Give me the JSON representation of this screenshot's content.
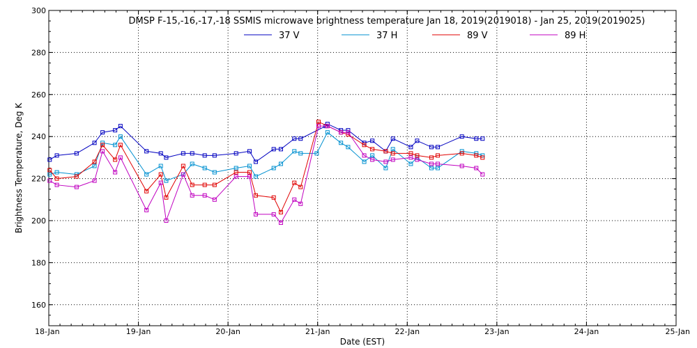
{
  "chart_data": {
    "type": "line",
    "title": "DMSP F-15,-16,-17,-18 SSMIS microwave brightness temperature Jan 18, 2019(2019018) - Jan 25, 2019(2019025)",
    "xlabel": "Date (EST)",
    "ylabel": "Brightness Temperature, Deg K",
    "x_ticks": [
      "18-Jan",
      "19-Jan",
      "20-Jan",
      "21-Jan",
      "22-Jan",
      "23-Jan",
      "24-Jan",
      "25-Jan"
    ],
    "xlim": [
      0,
      7
    ],
    "ylim": [
      150,
      300
    ],
    "y_ticks": [
      160,
      180,
      200,
      220,
      240,
      260,
      280,
      300
    ],
    "grid": true,
    "legend_position": "top-center",
    "series": [
      {
        "name": "37 V",
        "color": "#0000c0",
        "points": [
          [
            0.01,
            229
          ],
          [
            0.09,
            231
          ],
          [
            0.31,
            232
          ],
          [
            0.51,
            237
          ],
          [
            0.6,
            242
          ],
          [
            0.74,
            243
          ],
          [
            0.8,
            245
          ],
          [
            1.09,
            233
          ],
          [
            1.25,
            232
          ],
          [
            1.31,
            230
          ],
          [
            1.5,
            232
          ],
          [
            1.6,
            232
          ],
          [
            1.74,
            231
          ],
          [
            1.85,
            231
          ],
          [
            2.09,
            232
          ],
          [
            2.24,
            233
          ],
          [
            2.31,
            228
          ],
          [
            2.51,
            234
          ],
          [
            2.59,
            234
          ],
          [
            2.74,
            239
          ],
          [
            2.81,
            239
          ],
          [
            3.09,
            245
          ],
          [
            3.11,
            246
          ],
          [
            3.26,
            243
          ],
          [
            3.34,
            243
          ],
          [
            3.52,
            237
          ],
          [
            3.61,
            238
          ],
          [
            3.76,
            233
          ],
          [
            3.84,
            239
          ],
          [
            4.04,
            235
          ],
          [
            4.11,
            238
          ],
          [
            4.27,
            235
          ],
          [
            4.34,
            235
          ],
          [
            4.61,
            240
          ],
          [
            4.77,
            239
          ],
          [
            4.84,
            239
          ]
        ]
      },
      {
        "name": "37 H",
        "color": "#0090d0",
        "points": [
          [
            0.01,
            222
          ],
          [
            0.09,
            223
          ],
          [
            0.31,
            222
          ],
          [
            0.51,
            226
          ],
          [
            0.6,
            237
          ],
          [
            0.74,
            236
          ],
          [
            0.8,
            240
          ],
          [
            1.09,
            222
          ],
          [
            1.25,
            226
          ],
          [
            1.31,
            219
          ],
          [
            1.5,
            222
          ],
          [
            1.6,
            227
          ],
          [
            1.74,
            225
          ],
          [
            1.85,
            223
          ],
          [
            2.09,
            225
          ],
          [
            2.24,
            226
          ],
          [
            2.31,
            221
          ],
          [
            2.51,
            225
          ],
          [
            2.59,
            227
          ],
          [
            2.74,
            233
          ],
          [
            2.81,
            232
          ],
          [
            2.99,
            232
          ],
          [
            3.11,
            242
          ],
          [
            3.26,
            237
          ],
          [
            3.34,
            235
          ],
          [
            3.52,
            228
          ],
          [
            3.61,
            231
          ],
          [
            3.76,
            225
          ],
          [
            3.84,
            234
          ],
          [
            4.04,
            227
          ],
          [
            4.11,
            230
          ],
          [
            4.27,
            225
          ],
          [
            4.34,
            225
          ],
          [
            4.61,
            233
          ],
          [
            4.77,
            232
          ],
          [
            4.84,
            231
          ]
        ]
      },
      {
        "name": "89 V",
        "color": "#e00000",
        "points": [
          [
            0.01,
            224
          ],
          [
            0.09,
            220
          ],
          [
            0.31,
            221
          ],
          [
            0.51,
            228
          ],
          [
            0.6,
            236
          ],
          [
            0.74,
            229
          ],
          [
            0.8,
            236
          ],
          [
            1.09,
            214
          ],
          [
            1.25,
            222
          ],
          [
            1.31,
            211
          ],
          [
            1.5,
            226
          ],
          [
            1.6,
            217
          ],
          [
            1.74,
            217
          ],
          [
            1.85,
            217
          ],
          [
            2.09,
            223
          ],
          [
            2.24,
            223
          ],
          [
            2.31,
            212
          ],
          [
            2.51,
            211
          ],
          [
            2.59,
            204
          ],
          [
            2.74,
            218
          ],
          [
            2.81,
            216
          ],
          [
            3.01,
            247
          ],
          [
            3.11,
            245
          ],
          [
            3.26,
            242
          ],
          [
            3.34,
            241
          ],
          [
            3.52,
            236
          ],
          [
            3.61,
            234
          ],
          [
            3.76,
            233
          ],
          [
            3.84,
            232
          ],
          [
            4.04,
            232
          ],
          [
            4.11,
            231
          ],
          [
            4.27,
            230
          ],
          [
            4.34,
            231
          ],
          [
            4.61,
            232
          ],
          [
            4.77,
            231
          ],
          [
            4.84,
            230
          ]
        ]
      },
      {
        "name": "89 H",
        "color": "#c000c0",
        "points": [
          [
            0.01,
            219
          ],
          [
            0.09,
            217
          ],
          [
            0.31,
            216
          ],
          [
            0.51,
            219
          ],
          [
            0.6,
            233
          ],
          [
            0.74,
            223
          ],
          [
            0.8,
            230
          ],
          [
            1.09,
            205
          ],
          [
            1.25,
            218
          ],
          [
            1.31,
            200
          ],
          [
            1.5,
            222
          ],
          [
            1.6,
            212
          ],
          [
            1.74,
            212
          ],
          [
            1.85,
            210
          ],
          [
            2.09,
            221
          ],
          [
            2.24,
            221
          ],
          [
            2.31,
            203
          ],
          [
            2.51,
            203
          ],
          [
            2.59,
            199
          ],
          [
            2.74,
            210
          ],
          [
            2.81,
            208
          ],
          [
            3.01,
            245
          ],
          [
            3.11,
            245
          ],
          [
            3.26,
            242
          ],
          [
            3.34,
            242
          ],
          [
            3.52,
            231
          ],
          [
            3.61,
            229
          ],
          [
            3.76,
            228
          ],
          [
            3.84,
            229
          ],
          [
            4.04,
            230
          ],
          [
            4.11,
            229
          ],
          [
            4.27,
            227
          ],
          [
            4.34,
            227
          ],
          [
            4.61,
            226
          ],
          [
            4.77,
            225
          ],
          [
            4.84,
            222
          ]
        ]
      }
    ]
  }
}
